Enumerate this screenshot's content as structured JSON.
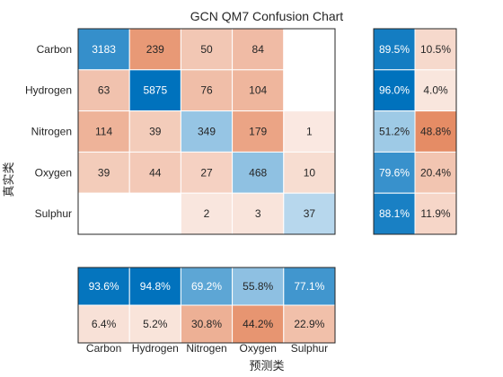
{
  "chart_data": {
    "type": "heatmap",
    "title": "GCN QM7 Confusion Chart",
    "xlabel": "预测类",
    "ylabel": "真实类",
    "classes": [
      "Carbon",
      "Hydrogen",
      "Nitrogen",
      "Oxygen",
      "Sulphur"
    ],
    "matrix": [
      [
        3183,
        239,
        50,
        84,
        null
      ],
      [
        63,
        5875,
        76,
        104,
        null
      ],
      [
        114,
        39,
        349,
        179,
        1
      ],
      [
        39,
        44,
        27,
        468,
        10
      ],
      [
        null,
        null,
        2,
        3,
        37
      ]
    ],
    "row_summary": [
      [
        "89.5%",
        "10.5%"
      ],
      [
        "96.0%",
        "4.0%"
      ],
      [
        "51.2%",
        "48.8%"
      ],
      [
        "79.6%",
        "20.4%"
      ],
      [
        "88.1%",
        "11.9%"
      ]
    ],
    "row_summary_values": [
      [
        89.5,
        10.5
      ],
      [
        96.0,
        4.0
      ],
      [
        51.2,
        48.8
      ],
      [
        79.6,
        20.4
      ],
      [
        88.1,
        11.9
      ]
    ],
    "column_summary": [
      [
        "93.6%",
        "94.8%",
        "69.2%",
        "55.8%",
        "77.1%"
      ],
      [
        "6.4%",
        "5.2%",
        "30.8%",
        "44.2%",
        "22.9%"
      ]
    ],
    "column_summary_values": [
      [
        93.6,
        94.8,
        69.2,
        55.8,
        77.1
      ],
      [
        6.4,
        5.2,
        30.8,
        44.2,
        22.9
      ]
    ],
    "colors": {
      "correct_strong": "#0072bd",
      "correct_light": "#c7e0f1",
      "incorrect_strong": "#d95319",
      "incorrect_light": "#fbeee8",
      "empty": "#ffffff",
      "border": "#262626",
      "text_dark": "#262626",
      "text_light": "#ffffff"
    }
  }
}
